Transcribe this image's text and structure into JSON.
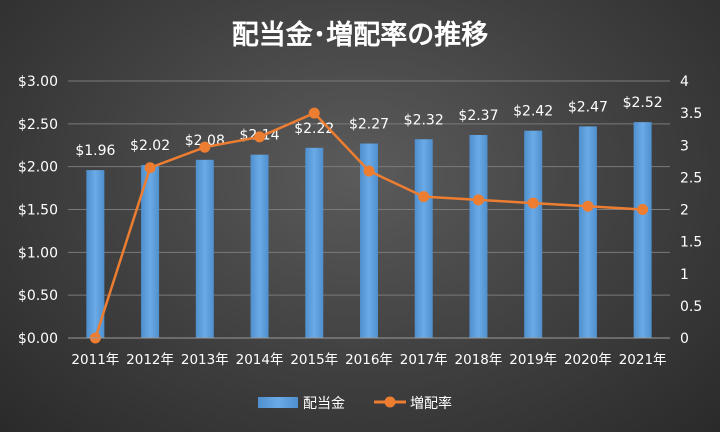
{
  "chart_data": {
    "type": "bar+line",
    "title": "配当金･増配率の推移",
    "categories": [
      "2011年",
      "2012年",
      "2013年",
      "2014年",
      "2015年",
      "2016年",
      "2017年",
      "2018年",
      "2019年",
      "2020年",
      "2021年"
    ],
    "series": [
      {
        "name": "配当金",
        "type": "bar",
        "axis": "left",
        "values": [
          1.96,
          2.02,
          2.08,
          2.14,
          2.22,
          2.27,
          2.32,
          2.37,
          2.42,
          2.47,
          2.52
        ],
        "data_labels": [
          "$1.96",
          "$2.02",
          "$2.08",
          "$2.14",
          "$2.22",
          "$2.27",
          "$2.32",
          "$2.37",
          "$2.42",
          "$2.47",
          "$2.52"
        ],
        "color": "#5b9bd5"
      },
      {
        "name": "増配率",
        "type": "line",
        "axis": "right",
        "values": [
          0,
          2.65,
          2.97,
          3.13,
          3.5,
          2.6,
          2.2,
          2.15,
          2.1,
          2.05,
          2.0
        ],
        "color": "#ed7d31"
      }
    ],
    "y_left": {
      "ylim": [
        0,
        3.0
      ],
      "ticks": [
        "$0.00",
        "$0.50",
        "$1.00",
        "$1.50",
        "$2.00",
        "$2.50",
        "$3.00"
      ]
    },
    "y_right": {
      "ylim": [
        0,
        4
      ],
      "ticks": [
        "0",
        "0.5",
        "1",
        "1.5",
        "2",
        "2.5",
        "3",
        "3.5",
        "4"
      ]
    },
    "grid": true,
    "legend": "bottom"
  }
}
